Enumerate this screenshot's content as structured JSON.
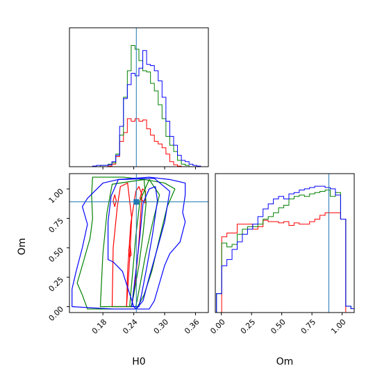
{
  "chart_data": {
    "type": "corner",
    "truth": {
      "H0": 0.245,
      "Om": 0.89
    },
    "truth_color": "#1f77b4",
    "series": [
      {
        "color": "#ff0000"
      },
      {
        "color": "#008000"
      },
      {
        "color": "#0000ff"
      }
    ],
    "panels": [
      {
        "id": "hist_H0",
        "type": "histogram",
        "xlim": [
          0.115,
          0.385
        ],
        "ylim": [
          0,
          1.1
        ],
        "hist_x_start": 0.115,
        "hist_bin_width": 0.0075,
        "series_values": [
          [
            0,
            0,
            0,
            0,
            0,
            0,
            0,
            0,
            0,
            0,
            0.005,
            0.02,
            0.08,
            0.2,
            0.27,
            0.38,
            0.36,
            0.38,
            0.36,
            0.37,
            0.3,
            0.25,
            0.2,
            0.18,
            0.15,
            0.1,
            0.04,
            0.015,
            0.005,
            0,
            0,
            0,
            0,
            0,
            0,
            0
          ],
          [
            0,
            0,
            0,
            0,
            0,
            0,
            0,
            0,
            0.01,
            0.01,
            0.02,
            0.03,
            0.1,
            0.25,
            0.55,
            0.76,
            0.96,
            0.93,
            0.84,
            0.76,
            0.75,
            0.66,
            0.6,
            0.49,
            0.38,
            0.24,
            0.17,
            0.12,
            0.05,
            0.02,
            0.01,
            0,
            0,
            0,
            0,
            0
          ],
          [
            0,
            0,
            0,
            0,
            0,
            0,
            0.005,
            0.01,
            0.01,
            0.01,
            0.015,
            0.04,
            0.09,
            0.32,
            0.54,
            0.65,
            0.74,
            0.72,
            0.78,
            0.92,
            0.81,
            0.8,
            0.76,
            0.68,
            0.55,
            0.36,
            0.24,
            0.17,
            0.09,
            0.05,
            0.04,
            0.02,
            0.01,
            0.005,
            0,
            0
          ]
        ],
        "truth_x": 0.245,
        "xticks": [
          0.18,
          0.24,
          0.3,
          0.36
        ]
      },
      {
        "id": "contour_H0_Om",
        "type": "contour",
        "xlim": [
          0.115,
          0.385
        ],
        "ylim": [
          -0.05,
          1.13
        ],
        "xlabel": "H0",
        "ylabel": "Om",
        "xticks": [
          0.18,
          0.24,
          0.3,
          0.36
        ],
        "xtick_labels": [
          "0.18",
          "0.24",
          "0.30",
          "0.36"
        ],
        "yticks": [
          0.0,
          0.25,
          0.5,
          0.75,
          1.0
        ],
        "ytick_labels": [
          "0.00",
          "0.25",
          "0.50",
          "0.75",
          "1.00"
        ],
        "truth_point": [
          0.245,
          0.89
        ],
        "contours": [
          {
            "series": 0,
            "points": [
              [
                0.198,
                0.0
              ],
              [
                0.2,
                0.5
              ],
              [
                0.208,
                0.85
              ],
              [
                0.214,
                1.02
              ],
              [
                0.228,
                1.05
              ],
              [
                0.236,
                0.75
              ],
              [
                0.232,
                0.4
              ],
              [
                0.226,
                0.0
              ]
            ]
          },
          {
            "series": 0,
            "points": [
              [
                0.226,
                0.0
              ],
              [
                0.228,
                0.3
              ],
              [
                0.234,
                0.7
              ],
              [
                0.244,
                0.98
              ],
              [
                0.25,
                1.02
              ],
              [
                0.256,
                0.95
              ],
              [
                0.25,
                0.55
              ],
              [
                0.243,
                0.2
              ],
              [
                0.236,
                0.0
              ]
            ]
          },
          {
            "series": 0,
            "points": [
              [
                0.252,
                0.92
              ],
              [
                0.257,
                1.0
              ],
              [
                0.263,
                0.98
              ],
              [
                0.262,
                0.88
              ]
            ]
          },
          {
            "series": 0,
            "points": [
              [
                0.23,
                0.48
              ],
              [
                0.233,
                0.52
              ],
              [
                0.235,
                0.44
              ],
              [
                0.232,
                0.42
              ]
            ]
          },
          {
            "series": 0,
            "points": [
              [
                0.2,
                0.9
              ],
              [
                0.203,
                0.95
              ],
              [
                0.206,
                0.9
              ],
              [
                0.203,
                0.85
              ]
            ]
          },
          {
            "series": 1,
            "points": [
              [
                0.175,
                0.0
              ],
              [
                0.18,
                0.45
              ],
              [
                0.188,
                0.8
              ],
              [
                0.198,
                1.04
              ],
              [
                0.26,
                1.08
              ],
              [
                0.264,
                0.88
              ],
              [
                0.258,
                0.62
              ],
              [
                0.25,
                0.35
              ],
              [
                0.24,
                0.1
              ],
              [
                0.235,
                0.0
              ]
            ]
          },
          {
            "series": 1,
            "points": [
              [
                0.232,
                0.0
              ],
              [
                0.238,
                0.3
              ],
              [
                0.244,
                0.6
              ],
              [
                0.252,
                0.9
              ],
              [
                0.27,
                1.08
              ],
              [
                0.29,
                0.95
              ],
              [
                0.276,
                0.7
              ],
              [
                0.262,
                0.42
              ],
              [
                0.252,
                0.18
              ],
              [
                0.244,
                0.0
              ]
            ]
          },
          {
            "series": 1,
            "points": [
              [
                0.13,
                0.2
              ],
              [
                0.14,
                0.35
              ],
              [
                0.155,
                0.58
              ],
              [
                0.16,
                0.75
              ],
              [
                0.158,
                0.95
              ],
              [
                0.16,
                1.1
              ],
              [
                0.22,
                1.1
              ],
              [
                0.26,
                1.08
              ],
              [
                0.3,
                1.05
              ],
              [
                0.32,
                1.0
              ],
              [
                0.305,
                0.85
              ],
              [
                0.29,
                0.58
              ],
              [
                0.275,
                0.3
              ],
              [
                0.26,
                0.1
              ],
              [
                0.245,
                -0.02
              ],
              [
                0.15,
                -0.02
              ],
              [
                0.14,
                0.1
              ]
            ]
          },
          {
            "series": 2,
            "points": [
              [
                0.236,
                0.0
              ],
              [
                0.244,
                0.3
              ],
              [
                0.252,
                0.6
              ],
              [
                0.258,
                0.88
              ],
              [
                0.27,
                1.0
              ],
              [
                0.282,
                1.02
              ],
              [
                0.286,
                0.9
              ],
              [
                0.276,
                0.6
              ],
              [
                0.266,
                0.35
              ],
              [
                0.255,
                0.1
              ],
              [
                0.25,
                0.0
              ]
            ]
          },
          {
            "series": 2,
            "points": [
              [
                0.19,
                0.4
              ],
              [
                0.19,
                0.72
              ],
              [
                0.196,
                0.94
              ],
              [
                0.21,
                1.08
              ],
              [
                0.28,
                1.09
              ],
              [
                0.31,
                0.98
              ],
              [
                0.3,
                0.72
              ],
              [
                0.285,
                0.48
              ],
              [
                0.27,
                0.25
              ],
              [
                0.258,
                0.05
              ],
              [
                0.245,
                -0.02
              ],
              [
                0.24,
                0.0
              ],
              [
                0.218,
                0.3
              ],
              [
                0.2,
                0.38
              ]
            ]
          },
          {
            "series": 2,
            "points": [
              [
                0.12,
                0.0
              ],
              [
                0.12,
                0.15
              ],
              [
                0.128,
                0.3
              ],
              [
                0.14,
                0.5
              ],
              [
                0.15,
                0.7
              ],
              [
                0.14,
                0.85
              ],
              [
                0.15,
                0.92
              ],
              [
                0.18,
                1.05
              ],
              [
                0.21,
                1.08
              ],
              [
                0.27,
                1.1
              ],
              [
                0.31,
                1.08
              ],
              [
                0.34,
                1.05
              ],
              [
                0.34,
                0.95
              ],
              [
                0.335,
                0.8
              ],
              [
                0.34,
                0.72
              ],
              [
                0.33,
                0.55
              ],
              [
                0.31,
                0.45
              ],
              [
                0.3,
                0.35
              ],
              [
                0.29,
                0.2
              ],
              [
                0.28,
                0.05
              ],
              [
                0.27,
                -0.02
              ],
              [
                0.2,
                -0.02
              ]
            ]
          }
        ]
      },
      {
        "id": "hist_Om",
        "type": "histogram",
        "xlim": [
          -0.05,
          1.1
        ],
        "ylim": [
          0,
          1.1
        ],
        "xlabel": "Om",
        "xticks": [
          0.0,
          0.25,
          0.5,
          0.75,
          1.0
        ],
        "xtick_labels": [
          "0.00",
          "0.25",
          "0.50",
          "0.75",
          "1.00"
        ],
        "hist_x_start": -0.04,
        "hist_bin_width": 0.0428,
        "series_values": [
          [
            0,
            0.6,
            0.63,
            0.63,
            0.7,
            0.7,
            0.7,
            0.66,
            0.68,
            0.73,
            0.72,
            0.72,
            0.71,
            0.72,
            0.69,
            0.71,
            0.7,
            0.7,
            0.72,
            0.74,
            0.77,
            0.79,
            0.79,
            0.79,
            0.74,
            0,
            0
          ],
          [
            0.15,
            0.55,
            0.52,
            0.54,
            0.62,
            0.66,
            0.68,
            0.68,
            0.7,
            0.74,
            0.76,
            0.79,
            0.83,
            0.85,
            0.9,
            0.92,
            0.93,
            0.92,
            0.94,
            0.95,
            0.96,
            0.97,
            0.92,
            0.95,
            0.74,
            0.05,
            0.03
          ],
          [
            0.15,
            0.37,
            0.42,
            0.5,
            0.56,
            0.62,
            0.66,
            0.7,
            0.76,
            0.82,
            0.86,
            0.9,
            0.92,
            0.9,
            0.94,
            0.95,
            0.97,
            0.98,
            0.99,
            1.0,
            1.0,
            0.99,
            0.98,
            0.93,
            0.74,
            0.05,
            0.03
          ]
        ],
        "truth_x": 0.89
      }
    ]
  }
}
